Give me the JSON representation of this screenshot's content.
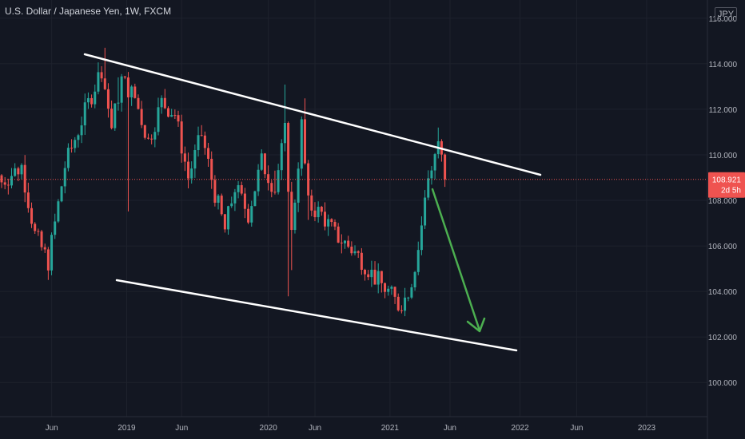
{
  "header": {
    "title": "U.S. Dollar / Japanese Yen, 1W, FXCM",
    "currency": "JPY"
  },
  "price_label": {
    "price": "108.921",
    "countdown": "2d 5h"
  },
  "colors": {
    "background": "#131722",
    "up": "#26a69a",
    "down": "#ef5350",
    "grid": "#1e222d",
    "trendline": "#ffffff",
    "arrow": "#4caf50",
    "price_line": "#ef5350"
  },
  "chart_data": {
    "type": "candlestick",
    "symbol": "U.S. Dollar / Japanese Yen",
    "interval": "1W",
    "source": "FXCM",
    "x_ticks": [
      "Jun",
      "2019",
      "Jun",
      "2020",
      "Jun",
      "2021",
      "Jun",
      "2022",
      "Jun",
      "2023"
    ],
    "y_ticks": [
      "116.000",
      "114.000",
      "112.000",
      "110.000",
      "108.000",
      "106.000",
      "104.000",
      "102.000",
      "100.000"
    ],
    "ylim": [
      98.5,
      116.8
    ],
    "last_price": 108.921,
    "countdown": "2d 5h",
    "anchors": [
      {
        "t": 0,
        "v": 108.8
      },
      {
        "t": 6,
        "v": 109.5
      },
      {
        "t": 10,
        "v": 106.5
      },
      {
        "t": 14,
        "v": 105.3
      },
      {
        "t": 19,
        "v": 109.5
      },
      {
        "t": 24,
        "v": 111.5
      },
      {
        "t": 30,
        "v": 113.8
      },
      {
        "t": 33,
        "v": 111.2
      },
      {
        "t": 36,
        "v": 113.3
      },
      {
        "t": 40,
        "v": 112.5
      },
      {
        "t": 44,
        "v": 110.6
      },
      {
        "t": 48,
        "v": 112.3
      },
      {
        "t": 52,
        "v": 111.8
      },
      {
        "t": 56,
        "v": 109.0
      },
      {
        "t": 60,
        "v": 110.9
      },
      {
        "t": 64,
        "v": 108.3
      },
      {
        "t": 67,
        "v": 106.7
      },
      {
        "t": 70,
        "v": 108.6
      },
      {
        "t": 74,
        "v": 107.4
      },
      {
        "t": 78,
        "v": 109.7
      },
      {
        "t": 82,
        "v": 108.5
      },
      {
        "t": 85,
        "v": 111.0
      },
      {
        "t": 87,
        "v": 106.5
      },
      {
        "t": 90,
        "v": 111.3
      },
      {
        "t": 92,
        "v": 107.8
      },
      {
        "t": 96,
        "v": 107.4
      },
      {
        "t": 100,
        "v": 106.5
      },
      {
        "t": 104,
        "v": 106.0
      },
      {
        "t": 108,
        "v": 105.4
      },
      {
        "t": 112,
        "v": 104.6
      },
      {
        "t": 116,
        "v": 104.0
      },
      {
        "t": 119,
        "v": 103.4
      },
      {
        "t": 121,
        "v": 103.7
      },
      {
        "t": 123,
        "v": 104.5
      },
      {
        "t": 125,
        "v": 105.9
      },
      {
        "t": 128,
        "v": 109.0
      },
      {
        "t": 131,
        "v": 110.6
      },
      {
        "t": 133,
        "v": 108.92
      }
    ],
    "drawings": {
      "upper_trendline": {
        "from": {
          "date": "2018 Oct",
          "price": 114.6
        },
        "to": {
          "date": "2021 Dec",
          "price": 109.3
        }
      },
      "lower_trendline": {
        "from": {
          "date": "2018 Dec",
          "price": 104.6
        },
        "to": {
          "date": "2021 Nov",
          "price": 101.4
        }
      },
      "projection_arrow": {
        "from": {
          "date": "2021 Mar",
          "price": 108.9
        },
        "to": {
          "date": "2021 Aug",
          "price": 102.4
        }
      }
    },
    "grid": true,
    "legend": "none"
  }
}
